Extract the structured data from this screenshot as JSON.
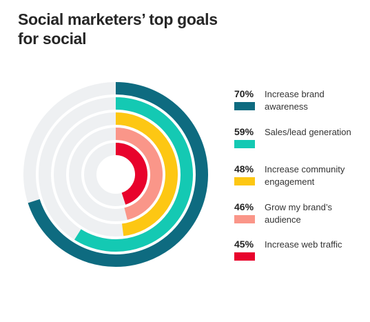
{
  "title": "Social marketers’ top goals for social",
  "chart_data": {
    "type": "radial-bar",
    "max_value": 100,
    "unit": "%",
    "track_color": "#eef0f2",
    "series": [
      {
        "name": "Increase brand awareness",
        "value": 70,
        "label": "70%",
        "color": "#0e6b80"
      },
      {
        "name": "Sales/lead generation",
        "value": 59,
        "label": "59%",
        "color": "#14c9b3"
      },
      {
        "name": "Increase community engagement",
        "value": 48,
        "label": "48%",
        "color": "#fdc713"
      },
      {
        "name": "Grow my brand’s audience",
        "value": 46,
        "label": "46%",
        "color": "#fa9689"
      },
      {
        "name": "Increase web traffic",
        "value": 45,
        "label": "45%",
        "color": "#e8032c"
      }
    ]
  }
}
